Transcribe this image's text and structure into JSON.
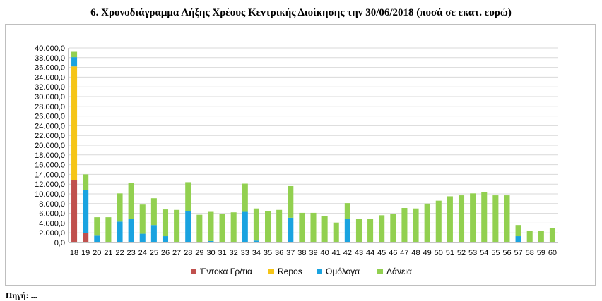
{
  "page": {
    "title": "6. Χρονοδιάγραμμα Λήξης Χρέους Κεντρικής Διοίκησης την 30/06/2018 (ποσά σε εκατ. ευρώ)",
    "footer_text": "Πηγή: ..."
  },
  "chart_data": {
    "type": "bar",
    "stacked": true,
    "title": "",
    "xlabel": "",
    "ylabel": "",
    "ylim": [
      0,
      40000
    ],
    "ytick_step": 2000,
    "ytick_labels": [
      "0,0",
      "2.000,0",
      "4.000,0",
      "6.000,0",
      "8.000,0",
      "10.000,0",
      "12.000,0",
      "14.000,0",
      "16.000,0",
      "18.000,0",
      "20.000,0",
      "22.000,0",
      "24.000,0",
      "26.000,0",
      "28.000,0",
      "30.000,0",
      "32.000,0",
      "34.000,0",
      "36.000,0",
      "38.000,0",
      "40.000,0"
    ],
    "grid": true,
    "legend_position": "bottom",
    "categories": [
      "18",
      "19",
      "20",
      "21",
      "22",
      "23",
      "24",
      "25",
      "26",
      "27",
      "28",
      "29",
      "30",
      "31",
      "32",
      "33",
      "34",
      "35",
      "36",
      "37",
      "38",
      "39",
      "40",
      "41",
      "42",
      "43",
      "44",
      "45",
      "46",
      "47",
      "48",
      "49",
      "50",
      "51",
      "52",
      "53",
      "54",
      "55",
      "56",
      "57",
      "58",
      "59",
      "60"
    ],
    "series": [
      {
        "name": "Έντοκα Γρ/τια",
        "color": "#c0504d",
        "values": [
          12800,
          2000,
          0,
          0,
          0,
          0,
          0,
          0,
          0,
          0,
          0,
          0,
          0,
          0,
          0,
          0,
          0,
          0,
          0,
          0,
          0,
          0,
          0,
          0,
          0,
          0,
          0,
          0,
          0,
          0,
          0,
          0,
          0,
          0,
          0,
          0,
          0,
          0,
          0,
          0,
          0,
          0,
          0
        ]
      },
      {
        "name": "Repos",
        "color": "#f5c518",
        "values": [
          23400,
          0,
          0,
          0,
          0,
          0,
          0,
          0,
          0,
          0,
          0,
          0,
          0,
          0,
          0,
          0,
          0,
          0,
          0,
          0,
          0,
          0,
          0,
          0,
          0,
          0,
          0,
          0,
          0,
          0,
          0,
          0,
          0,
          0,
          0,
          0,
          0,
          0,
          0,
          0,
          0,
          0,
          0
        ]
      },
      {
        "name": "Ομόλογα",
        "color": "#1aa3e0",
        "values": [
          1900,
          8800,
          1400,
          0,
          4300,
          4800,
          1800,
          3600,
          1300,
          0,
          6400,
          0,
          300,
          0,
          0,
          6300,
          400,
          0,
          0,
          5100,
          0,
          0,
          0,
          0,
          4800,
          0,
          0,
          0,
          0,
          0,
          0,
          0,
          0,
          0,
          0,
          0,
          0,
          0,
          0,
          1300,
          0,
          0,
          0
        ]
      },
      {
        "name": "Δάνεια",
        "color": "#92d050",
        "values": [
          1100,
          3200,
          3800,
          5200,
          5800,
          7400,
          6000,
          5500,
          5500,
          6700,
          6000,
          5700,
          6000,
          5800,
          6200,
          5800,
          6600,
          6500,
          6700,
          6500,
          6100,
          6100,
          5400,
          4100,
          3300,
          4800,
          4800,
          5600,
          5800,
          7100,
          7000,
          8000,
          8600,
          9500,
          9700,
          10100,
          10400,
          9700,
          9700,
          2300,
          2400,
          2400,
          2900
        ]
      }
    ]
  }
}
